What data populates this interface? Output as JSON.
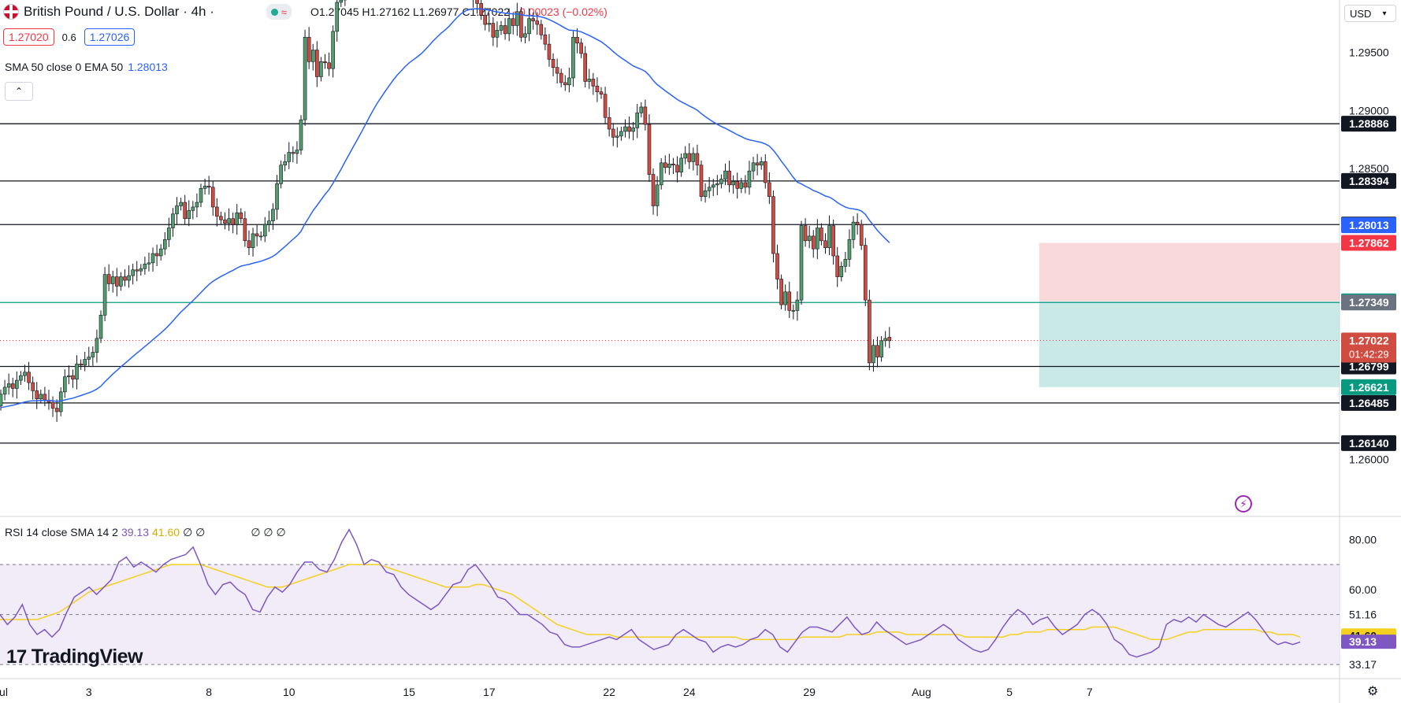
{
  "header": {
    "symbol_title": "British Pound / U.S. Dollar · 4h ·",
    "open": "O1.27045",
    "high": "H1.27162",
    "low": "L1.26977",
    "close": "C1.27022",
    "change": "−0.00023 (−0.02%)",
    "bid": "1.27020",
    "spread": "0.6",
    "ask": "1.27026",
    "wave_icon": "≈",
    "status_color": "#22ab94"
  },
  "indicators": {
    "ma_label": "SMA 50 close 0 EMA 50",
    "ma_value": "1.28013",
    "collapse_label": "⌃",
    "rsi_label": "RSI 14 close SMA 14 2",
    "rsi_value": "39.13",
    "rsi_sma_value": "41.60",
    "rsi_extra": "∅ ∅",
    "rsi_extra2": "∅ ∅ ∅"
  },
  "currency_selector": "USD",
  "branding": "TradingView",
  "colors": {
    "up": "#529e6c",
    "down": "#d14c40",
    "ma": "#2962ff",
    "rsi": "#7e57c2",
    "rsi_sma": "#f5d020",
    "target_zone": "#b2dfdb",
    "stop_zone": "#f8c9cc"
  },
  "chart_data": [
    {
      "type": "candlestick",
      "title": "British Pound / U.S. Dollar · 4h",
      "ylim": [
        1.2555,
        1.2995
      ],
      "y_tick_labels": [
        "1.29500",
        "1.29000",
        "1.28500",
        "1.26000"
      ],
      "y_ticks": [
        1.295,
        1.29,
        1.285,
        1.26
      ],
      "x_tick_labels": [
        "Jul",
        "3",
        "8",
        "10",
        "15",
        "17",
        "22",
        "24",
        "29",
        "Aug",
        "5",
        "7"
      ],
      "x_tick_index": [
        0,
        22,
        52,
        72,
        102,
        122,
        152,
        172,
        202,
        230,
        252,
        272
      ],
      "horizontal_levels": [
        1.28886,
        1.28394,
        1.28019,
        1.26799,
        1.26485,
        1.2614
      ],
      "level_labels": [
        "1.28886",
        "1.28394",
        "1.28019",
        "1.26799",
        "1.26485",
        "1.26140"
      ],
      "green_line": 1.27349,
      "current_price": 1.27022,
      "countdown": "01:42:29",
      "price_labels": [
        {
          "value": 1.28013,
          "text": "1.28013",
          "color": "#2962ff"
        },
        {
          "value": 1.27862,
          "text": "1.27862",
          "color": "#f23645"
        },
        {
          "value": 1.27359,
          "text": "1.27359",
          "color": "#089981"
        },
        {
          "value": 1.27349,
          "text": "1.27349",
          "color": "#6b7280"
        },
        {
          "value": 1.26621,
          "text": "1.26621",
          "color": "#089981"
        }
      ],
      "position": {
        "entry": 1.27359,
        "stop": 1.27862,
        "target": 1.26621,
        "start_index": 260
      },
      "closes": [
        1.2656,
        1.2662,
        1.2665,
        1.2661,
        1.2668,
        1.2672,
        1.2675,
        1.2666,
        1.2659,
        1.2652,
        1.2656,
        1.2651,
        1.2649,
        1.2644,
        1.2641,
        1.2658,
        1.2671,
        1.2672,
        1.2669,
        1.2682,
        1.2681,
        1.2686,
        1.2688,
        1.2692,
        1.2704,
        1.2724,
        1.2759,
        1.2751,
        1.2757,
        1.2749,
        1.2757,
        1.2754,
        1.2758,
        1.2763,
        1.2762,
        1.2764,
        1.2768,
        1.2769,
        1.2777,
        1.2775,
        1.2781,
        1.2789,
        1.2799,
        1.2811,
        1.2818,
        1.2821,
        1.2807,
        1.2814,
        1.2817,
        1.2821,
        1.2833,
        1.2835,
        1.2834,
        1.2817,
        1.2809,
        1.2806,
        1.2803,
        1.2807,
        1.2802,
        1.2812,
        1.2807,
        1.2788,
        1.2782,
        1.2794,
        1.2792,
        1.2792,
        1.2802,
        1.2805,
        1.2815,
        1.2837,
        1.2853,
        1.2856,
        1.2864,
        1.2863,
        1.2866,
        1.2892,
        1.2963,
        1.2942,
        1.2952,
        1.2929,
        1.2942,
        1.2941,
        1.2936,
        1.2968,
        1.2993,
        1.2995,
        1.3017,
        1.3015,
        1.3021,
        1.3023,
        1.3033,
        1.3048,
        1.3053,
        1.3055,
        1.3051,
        1.3038,
        1.3043,
        1.3038,
        1.3045,
        1.3036,
        1.3022,
        1.3032,
        1.3018,
        1.3005,
        1.3009,
        1.3016,
        1.3035,
        1.3049,
        1.3054,
        1.3045,
        1.3049,
        1.3036,
        1.3053,
        1.3071,
        1.3071,
        1.3062,
        1.3038,
        1.3025,
        1.2996,
        1.2992,
        1.2982,
        1.2974,
        1.2975,
        1.2963,
        1.2969,
        1.2973,
        1.2966,
        1.2979,
        1.2973,
        1.2985,
        1.2963,
        1.2966,
        1.2979,
        1.2977,
        1.2974,
        1.2965,
        1.2957,
        1.2944,
        1.2937,
        1.2932,
        1.2924,
        1.2922,
        1.2928,
        1.2963,
        1.2958,
        1.2949,
        1.2925,
        1.2927,
        1.2921,
        1.2916,
        1.2914,
        1.2894,
        1.2884,
        1.2877,
        1.2878,
        1.2882,
        1.2886,
        1.2882,
        1.2885,
        1.2898,
        1.2903,
        1.2888,
        1.2845,
        1.2818,
        1.2836,
        1.2855,
        1.2851,
        1.2854,
        1.2853,
        1.2847,
        1.2859,
        1.2863,
        1.2856,
        1.2863,
        1.2853,
        1.2826,
        1.2831,
        1.2834,
        1.2836,
        1.2837,
        1.2841,
        1.2848,
        1.2836,
        1.2839,
        1.2833,
        1.2838,
        1.2834,
        1.2848,
        1.2855,
        1.2853,
        1.2856,
        1.2838,
        1.2826,
        1.2777,
        1.2755,
        1.2733,
        1.2744,
        1.2728,
        1.2728,
        1.2737,
        1.2801,
        1.2788,
        1.2792,
        1.2781,
        1.2799,
        1.2788,
        1.2782,
        1.2801,
        1.2775,
        1.2757,
        1.2766,
        1.2772,
        1.2789,
        1.2804,
        1.2802,
        1.2784,
        1.2737,
        1.2683,
        1.2698,
        1.2688,
        1.2702,
        1.2704,
        1.2702
      ],
      "opens": [
        1.2646,
        1.2656,
        1.2662,
        1.2665,
        1.2661,
        1.2668,
        1.2672,
        1.2675,
        1.2666,
        1.2659,
        1.2652,
        1.2656,
        1.2651,
        1.2649,
        1.2644,
        1.2641,
        1.2658,
        1.2671,
        1.2672,
        1.2669,
        1.2682,
        1.2681,
        1.2686,
        1.2688,
        1.2692,
        1.2704,
        1.2724,
        1.2759,
        1.2751,
        1.2757,
        1.2749,
        1.2757,
        1.2754,
        1.2758,
        1.2763,
        1.2762,
        1.2764,
        1.2768,
        1.2769,
        1.2777,
        1.2775,
        1.2781,
        1.2789,
        1.2799,
        1.2811,
        1.2818,
        1.2821,
        1.2807,
        1.2814,
        1.2817,
        1.2821,
        1.2833,
        1.2835,
        1.2834,
        1.2817,
        1.2809,
        1.2806,
        1.2803,
        1.2807,
        1.2802,
        1.2812,
        1.2807,
        1.2788,
        1.2782,
        1.2794,
        1.2792,
        1.2792,
        1.2802,
        1.2805,
        1.2815,
        1.2837,
        1.2853,
        1.2856,
        1.2864,
        1.2863,
        1.2866,
        1.2892,
        1.2963,
        1.2942,
        1.2952,
        1.2929,
        1.2942,
        1.2941,
        1.2936,
        1.2968,
        1.2993,
        1.2995,
        1.3017,
        1.3015,
        1.3021,
        1.3023,
        1.3033,
        1.3048,
        1.3053,
        1.3055,
        1.3051,
        1.3038,
        1.3043,
        1.3038,
        1.3045,
        1.3036,
        1.3022,
        1.3032,
        1.3018,
        1.3005,
        1.3009,
        1.3016,
        1.3035,
        1.3049,
        1.3054,
        1.3045,
        1.3049,
        1.3036,
        1.3053,
        1.3071,
        1.3071,
        1.3062,
        1.3038,
        1.3025,
        1.2996,
        1.2992,
        1.2982,
        1.2974,
        1.2975,
        1.2963,
        1.2969,
        1.2973,
        1.2966,
        1.2979,
        1.2973,
        1.2985,
        1.2963,
        1.2966,
        1.2979,
        1.2977,
        1.2974,
        1.2965,
        1.2957,
        1.2944,
        1.2937,
        1.2932,
        1.2924,
        1.2922,
        1.2928,
        1.2963,
        1.2958,
        1.2949,
        1.2925,
        1.2927,
        1.2921,
        1.2916,
        1.2914,
        1.2894,
        1.2884,
        1.2877,
        1.2878,
        1.2882,
        1.2886,
        1.2882,
        1.2885,
        1.2898,
        1.2903,
        1.2888,
        1.2845,
        1.2818,
        1.2836,
        1.2855,
        1.2851,
        1.2854,
        1.2853,
        1.2847,
        1.2859,
        1.2863,
        1.2856,
        1.2863,
        1.2853,
        1.2826,
        1.2831,
        1.2834,
        1.2836,
        1.2837,
        1.2841,
        1.2848,
        1.2836,
        1.2839,
        1.2833,
        1.2838,
        1.2834,
        1.2848,
        1.2855,
        1.2853,
        1.2856,
        1.2838,
        1.2826,
        1.2777,
        1.2755,
        1.2733,
        1.2744,
        1.2728,
        1.2728,
        1.2737,
        1.2801,
        1.2788,
        1.2792,
        1.2781,
        1.2799,
        1.2788,
        1.2782,
        1.2801,
        1.2775,
        1.2757,
        1.2766,
        1.2772,
        1.2789,
        1.2804,
        1.2802,
        1.2784,
        1.2737,
        1.2683,
        1.2698,
        1.2688,
        1.2702,
        1.2705
      ]
    },
    {
      "type": "line",
      "title": "RSI 14 close SMA 14 2",
      "ylim": [
        25,
        88
      ],
      "y_tick_labels": [
        "80.00",
        "60.00"
      ],
      "y_ticks": [
        80,
        60
      ],
      "bands": [
        70,
        50,
        30
      ],
      "band_labels": [
        "51.16",
        "33.17"
      ],
      "series": [
        {
          "name": "RSI",
          "color": "#7e57c2",
          "values": [
            50,
            46,
            49,
            54,
            46,
            42,
            44,
            41,
            44,
            51,
            57,
            59,
            61,
            58,
            61,
            64,
            71,
            73,
            69,
            71,
            69,
            67,
            70,
            72,
            73,
            74,
            77,
            70,
            62,
            58,
            62,
            63,
            60,
            58,
            52,
            51,
            57,
            61,
            59,
            62,
            67,
            71,
            71,
            68,
            67,
            72,
            79,
            84,
            78,
            70,
            72,
            71,
            67,
            66,
            61,
            58,
            56,
            54,
            52,
            54,
            58,
            62,
            63,
            68,
            70,
            66,
            62,
            57,
            56,
            53,
            50,
            50,
            48,
            46,
            43,
            42,
            38,
            37,
            37,
            38,
            39,
            40,
            41,
            40,
            42,
            44,
            40,
            38,
            36,
            37,
            38,
            42,
            44,
            42,
            40,
            39,
            35,
            37,
            38,
            37,
            38,
            40,
            41,
            44,
            42,
            37,
            35,
            39,
            43,
            45,
            45,
            44,
            43,
            46,
            49,
            45,
            42,
            43,
            47,
            44,
            42,
            40,
            38,
            39,
            40,
            42,
            44,
            46,
            44,
            40,
            38,
            36,
            35,
            36,
            40,
            45,
            49,
            52,
            50,
            46,
            48,
            49,
            45,
            42,
            44,
            46,
            50,
            52,
            50,
            46,
            40,
            38,
            34,
            33,
            34,
            35,
            37,
            46,
            48,
            47,
            49,
            47,
            50,
            48,
            46,
            45,
            47,
            49,
            51,
            48,
            44,
            40,
            38,
            39,
            38,
            39
          ],
          "smooth_values": [
            48,
            48,
            48,
            48,
            48,
            48,
            49,
            50,
            51,
            53,
            55,
            57,
            59,
            60,
            61,
            62,
            63,
            64,
            65,
            66,
            67,
            68,
            69,
            70,
            70,
            70,
            70,
            70,
            69,
            68,
            67,
            66,
            65,
            64,
            63,
            62,
            61,
            61,
            61,
            62,
            63,
            64,
            65,
            66,
            67,
            68,
            69,
            70,
            70,
            70,
            70,
            70,
            69,
            68,
            67,
            66,
            65,
            64,
            63,
            62,
            61,
            61,
            61,
            61,
            62,
            62,
            61,
            60,
            59,
            58,
            56,
            54,
            52,
            50,
            48,
            46,
            45,
            44,
            43,
            42,
            42,
            42,
            42,
            41,
            41,
            41,
            41,
            41,
            41,
            41,
            41,
            41,
            41,
            41,
            41,
            41,
            41,
            41,
            41,
            41,
            40,
            40,
            40,
            40,
            40,
            40,
            40,
            40,
            41,
            41,
            41,
            41,
            41,
            41,
            42,
            42,
            42,
            42,
            43,
            43,
            43,
            43,
            42,
            42,
            42,
            42,
            42,
            42,
            42,
            42,
            41,
            41,
            41,
            41,
            41,
            41,
            42,
            42,
            43,
            43,
            43,
            44,
            44,
            44,
            44,
            44,
            44,
            45,
            45,
            45,
            45,
            44,
            43,
            42,
            41,
            40,
            40,
            40,
            41,
            42,
            43,
            43,
            44,
            44,
            44,
            44,
            44,
            44,
            44,
            44,
            43,
            43,
            42,
            42,
            42,
            41
          ]
        },
        {
          "name": "RSI-based MA",
          "color": "#f5d020"
        }
      ]
    }
  ],
  "x_axis": {
    "labels": [
      "Jul",
      "3",
      "8",
      "10",
      "15",
      "17",
      "22",
      "24",
      "29",
      "Aug",
      "5",
      "7"
    ]
  },
  "rsi_axis": {
    "rsi_label": "39.13",
    "sma_label": "41.60"
  }
}
